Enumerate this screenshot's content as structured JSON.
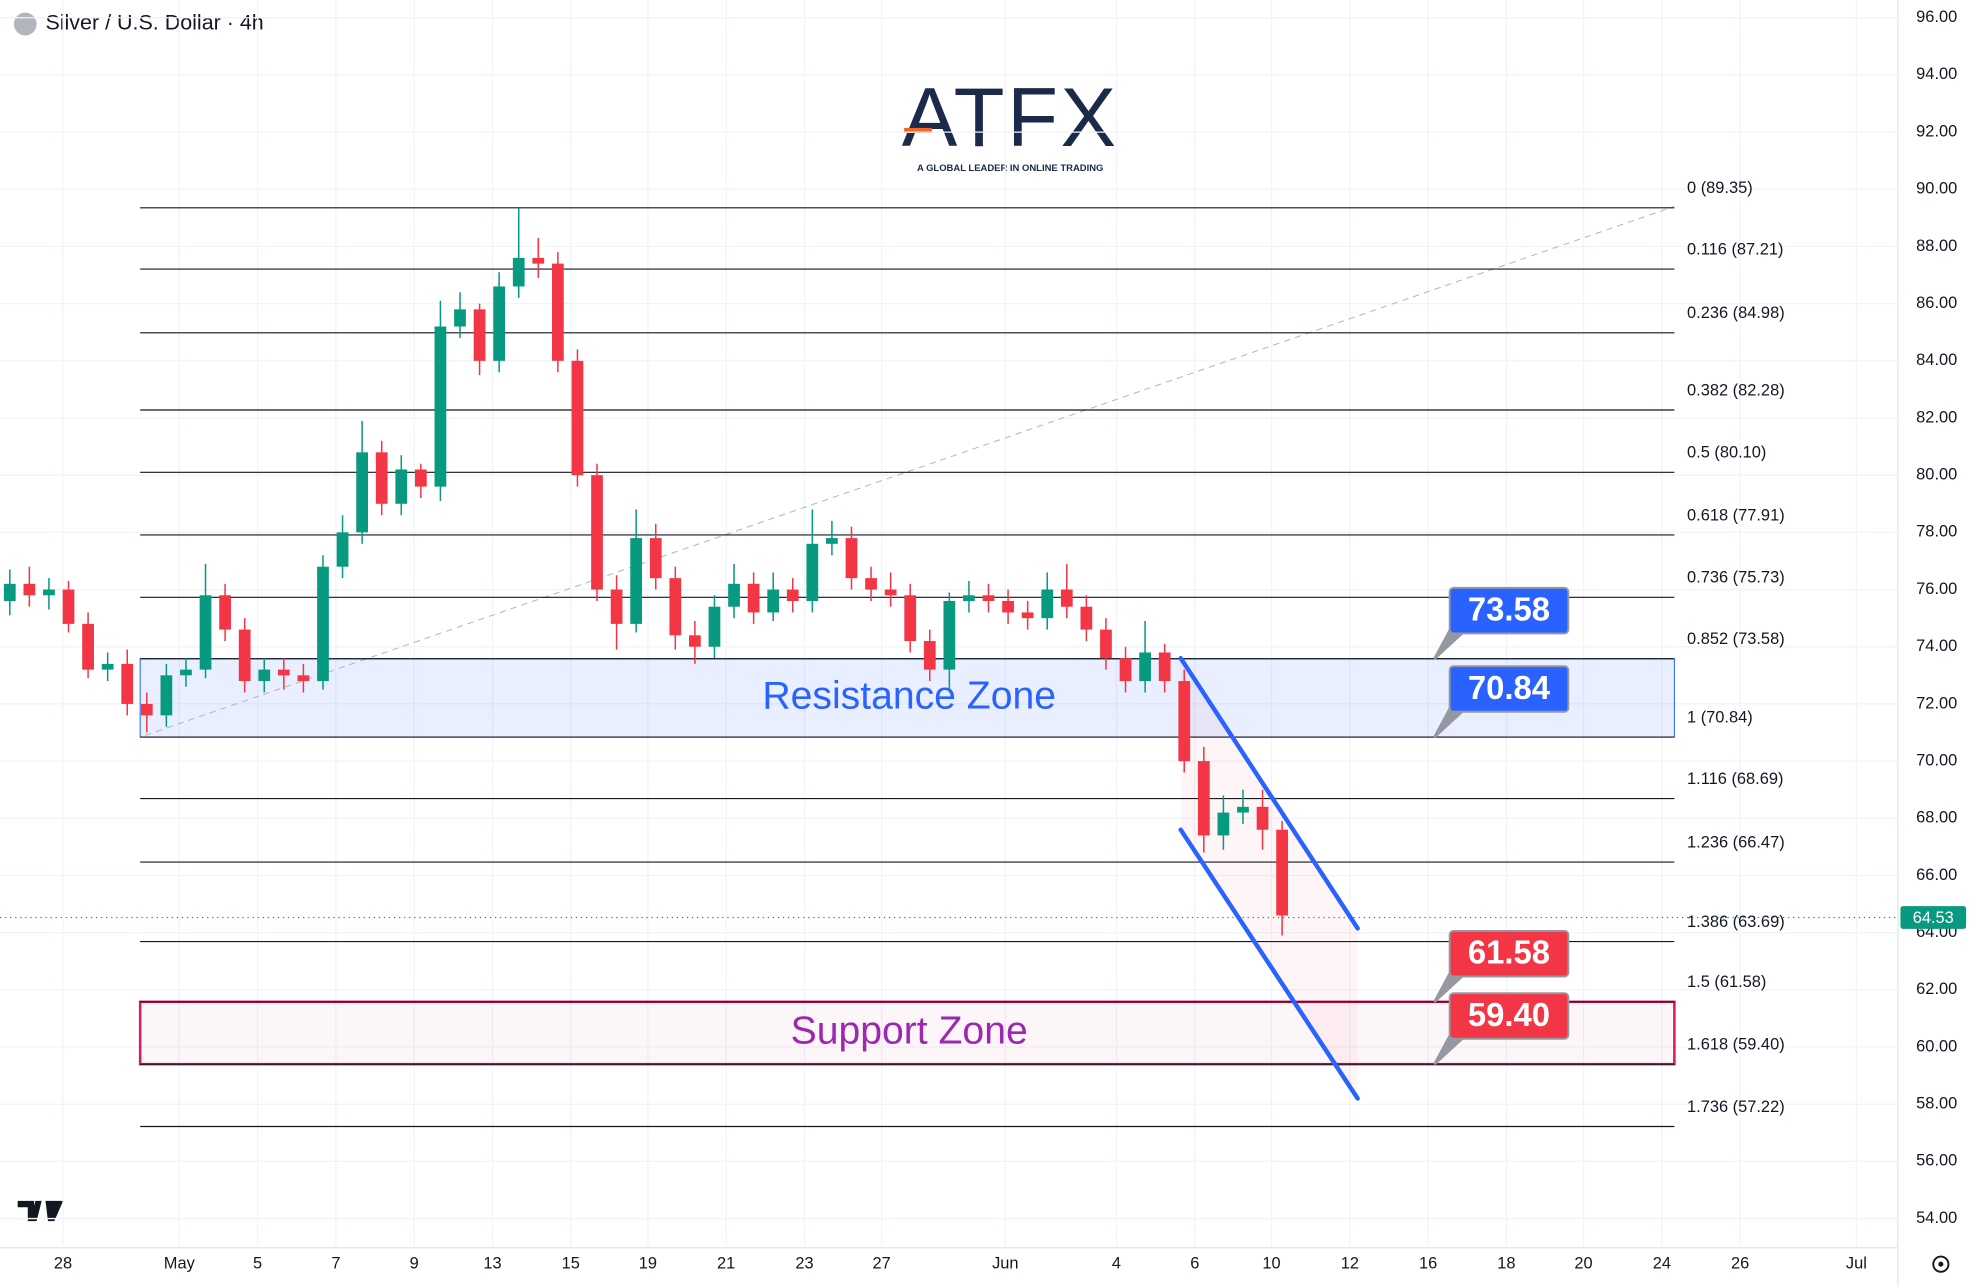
{
  "chart_data": {
    "type": "candlestick",
    "title": "Silver / U.S. Dollar · 4h",
    "brand": "ATFX",
    "brand_tagline": "A GLOBAL LEADER IN ONLINE TRADING",
    "x": [
      0.25,
      0.75,
      1.25,
      1.75,
      2.25,
      2.75,
      3.25,
      3.75,
      4.25,
      4.75,
      5.25,
      5.75,
      6.25,
      6.75,
      7.25,
      7.75,
      8.25,
      8.75,
      9.25,
      9.75,
      10.25,
      10.75,
      11.25,
      11.75,
      12.25,
      12.75,
      13.25,
      13.75,
      14.25,
      14.75,
      15.25,
      15.75,
      16.25,
      16.75,
      17.25,
      17.75,
      18.25,
      18.75,
      19.25,
      19.75,
      20.25,
      20.75,
      21.25,
      21.75,
      22.25,
      22.75,
      23.25,
      23.75,
      24.25,
      24.75,
      25.25,
      25.75,
      26.25,
      26.75,
      27.25,
      27.75,
      28.25,
      28.75,
      29.25,
      29.75,
      30.25,
      30.75,
      31.25,
      31.75,
      32.25,
      32.75
    ],
    "open": [
      75.6,
      76.2,
      75.8,
      76.0,
      74.8,
      73.2,
      73.4,
      72.0,
      71.6,
      73.0,
      73.2,
      75.8,
      74.6,
      72.8,
      73.2,
      73.0,
      72.8,
      76.8,
      78.0,
      80.8,
      79.0,
      80.2,
      79.6,
      85.2,
      85.8,
      84.0,
      86.6,
      87.6,
      87.4,
      84.0,
      80.0,
      76.0,
      74.8,
      77.8,
      76.4,
      74.4,
      74.0,
      75.4,
      76.2,
      75.2,
      76.0,
      75.6,
      77.6,
      77.8,
      76.4,
      76.0,
      75.8,
      74.2,
      73.2,
      75.6,
      75.8,
      75.6,
      75.2,
      75.0,
      76.0,
      75.4,
      74.6,
      73.6,
      72.8,
      73.8,
      72.8,
      70.0,
      67.4,
      68.2,
      68.4,
      67.6
    ],
    "high": [
      76.7,
      76.8,
      76.4,
      76.3,
      75.2,
      73.8,
      73.9,
      72.4,
      73.4,
      73.6,
      76.9,
      76.2,
      75.0,
      73.6,
      73.6,
      73.4,
      77.2,
      78.6,
      81.9,
      81.2,
      80.7,
      80.4,
      86.1,
      86.4,
      86.0,
      87.1,
      89.35,
      88.3,
      87.8,
      84.4,
      80.4,
      76.5,
      78.8,
      78.3,
      76.8,
      74.9,
      75.8,
      76.9,
      76.6,
      76.6,
      76.4,
      78.8,
      78.4,
      78.2,
      76.8,
      76.6,
      76.2,
      74.6,
      75.9,
      76.3,
      76.2,
      76.0,
      75.6,
      76.6,
      76.9,
      75.8,
      75.0,
      74.0,
      74.9,
      74.1,
      73.2,
      70.5,
      68.8,
      69.0,
      69.0,
      67.9
    ],
    "low": [
      75.1,
      75.4,
      75.3,
      74.5,
      72.9,
      72.8,
      71.6,
      71.0,
      71.2,
      72.6,
      72.9,
      74.2,
      72.4,
      72.4,
      72.5,
      72.4,
      72.5,
      76.4,
      77.6,
      78.6,
      78.6,
      79.2,
      79.1,
      84.8,
      83.5,
      83.6,
      86.2,
      86.9,
      83.6,
      79.6,
      75.6,
      73.9,
      74.5,
      76.0,
      73.9,
      73.4,
      73.6,
      75.0,
      74.8,
      74.9,
      75.2,
      75.2,
      77.2,
      76.0,
      75.6,
      75.4,
      73.8,
      72.8,
      72.4,
      75.2,
      75.2,
      74.8,
      74.6,
      74.6,
      75.0,
      74.2,
      73.2,
      72.4,
      72.4,
      72.4,
      69.6,
      66.8,
      66.9,
      67.8,
      66.9,
      63.9
    ],
    "close": [
      76.2,
      75.8,
      76.0,
      74.8,
      73.2,
      73.4,
      72.0,
      71.6,
      73.0,
      73.2,
      75.8,
      74.6,
      72.8,
      73.2,
      73.0,
      72.8,
      76.8,
      78.0,
      80.8,
      79.0,
      80.2,
      79.6,
      85.2,
      85.8,
      84.0,
      86.6,
      87.6,
      87.4,
      84.0,
      80.0,
      76.0,
      74.8,
      77.8,
      76.4,
      74.4,
      74.0,
      75.4,
      76.2,
      75.2,
      76.0,
      75.6,
      77.6,
      77.8,
      76.4,
      76.0,
      75.8,
      74.2,
      73.2,
      75.6,
      75.8,
      75.6,
      75.2,
      75.0,
      76.0,
      75.4,
      74.6,
      73.6,
      72.8,
      73.8,
      72.8,
      70.0,
      67.4,
      68.2,
      68.4,
      67.6,
      64.6
    ],
    "up_color": "#089981",
    "down_color": "#f23645",
    "xlim": [
      0,
      48.48
    ],
    "xticks": [
      {
        "value": 1.61,
        "label": "28"
      },
      {
        "value": 4.58,
        "label": "May"
      },
      {
        "value": 6.58,
        "label": "5"
      },
      {
        "value": 8.58,
        "label": "7"
      },
      {
        "value": 10.58,
        "label": "9"
      },
      {
        "value": 12.58,
        "label": "13"
      },
      {
        "value": 14.58,
        "label": "15"
      },
      {
        "value": 16.55,
        "label": "19"
      },
      {
        "value": 18.55,
        "label": "21"
      },
      {
        "value": 20.55,
        "label": "23"
      },
      {
        "value": 22.52,
        "label": "27"
      },
      {
        "value": 25.68,
        "label": "Jun"
      },
      {
        "value": 28.52,
        "label": "4"
      },
      {
        "value": 30.52,
        "label": "6"
      },
      {
        "value": 32.48,
        "label": "10"
      },
      {
        "value": 34.48,
        "label": "12"
      },
      {
        "value": 36.48,
        "label": "16"
      },
      {
        "value": 38.48,
        "label": "18"
      },
      {
        "value": 40.45,
        "label": "20"
      },
      {
        "value": 42.45,
        "label": "24"
      },
      {
        "value": 44.45,
        "label": "26"
      },
      {
        "value": 47.42,
        "label": "Jul"
      }
    ],
    "ylim": [
      52.98,
      96.62
    ],
    "yticks": [
      {
        "value": 54,
        "label": "54.00"
      },
      {
        "value": 56,
        "label": "56.00"
      },
      {
        "value": 58,
        "label": "58.00"
      },
      {
        "value": 60,
        "label": "60.00"
      },
      {
        "value": 62,
        "label": "62.00"
      },
      {
        "value": 64,
        "label": "64.00"
      },
      {
        "value": 66,
        "label": "66.00"
      },
      {
        "value": 68,
        "label": "68.00"
      },
      {
        "value": 70,
        "label": "70.00"
      },
      {
        "value": 72,
        "label": "72.00"
      },
      {
        "value": 74,
        "label": "74.00"
      },
      {
        "value": 76,
        "label": "76.00"
      },
      {
        "value": 78,
        "label": "78.00"
      },
      {
        "value": 80,
        "label": "80.00"
      },
      {
        "value": 82,
        "label": "82.00"
      },
      {
        "value": 84,
        "label": "84.00"
      },
      {
        "value": 86,
        "label": "86.00"
      },
      {
        "value": 88,
        "label": "88.00"
      },
      {
        "value": 90,
        "label": "90.00"
      },
      {
        "value": 92,
        "label": "92.00"
      },
      {
        "value": 94,
        "label": "94.00"
      },
      {
        "value": 96,
        "label": "96.00"
      }
    ],
    "fib_levels": [
      {
        "value": 89.35,
        "label": "0 (89.35)"
      },
      {
        "value": 87.21,
        "label": "0.116 (87.21)"
      },
      {
        "value": 84.98,
        "label": "0.236 (84.98)"
      },
      {
        "value": 82.28,
        "label": "0.382 (82.28)"
      },
      {
        "value": 80.1,
        "label": "0.5 (80.10)"
      },
      {
        "value": 77.91,
        "label": "0.618 (77.91)"
      },
      {
        "value": 75.73,
        "label": "0.736 (75.73)"
      },
      {
        "value": 73.58,
        "label": "0.852 (73.58)"
      },
      {
        "value": 70.84,
        "label": "1 (70.84)"
      },
      {
        "value": 68.69,
        "label": "1.116 (68.69)"
      },
      {
        "value": 66.47,
        "label": "1.236 (66.47)"
      },
      {
        "value": 63.69,
        "label": "1.386 (63.69)"
      },
      {
        "value": 61.58,
        "label": "1.5 (61.58)"
      },
      {
        "value": 59.4,
        "label": "1.618 (59.40)"
      },
      {
        "value": 57.22,
        "label": "1.736 (57.22)"
      }
    ],
    "fib_xlim": [
      3.58,
      42.77
    ],
    "zones": [
      {
        "name": "Resistance Zone",
        "ylim": [
          70.84,
          73.58
        ],
        "color": "#2962ff",
        "text_color": "#2962ff"
      },
      {
        "name": "Support Zone",
        "ylim": [
          59.4,
          61.58
        ],
        "color": "#d81b60",
        "text_color": "#9c27b0"
      }
    ],
    "price_tags": [
      {
        "value": 73.58,
        "label": "73.58",
        "color": "#2962ff"
      },
      {
        "value": 70.84,
        "label": "70.84",
        "color": "#2962ff"
      },
      {
        "value": 61.58,
        "label": "61.58",
        "color": "#f23645"
      },
      {
        "value": 59.4,
        "label": "59.40",
        "color": "#f23645"
      }
    ],
    "current_price": {
      "value": 64.53,
      "label": "64.53",
      "color": "#089981"
    },
    "channel_lines": [
      {
        "x": [
          30.16,
          34.68
        ],
        "y": [
          73.6,
          64.15
        ]
      },
      {
        "x": [
          30.16,
          34.68
        ],
        "y": [
          67.6,
          58.2
        ]
      }
    ],
    "trend_line": {
      "x": [
        3.71,
        42.77
      ],
      "y": [
        70.9,
        89.4
      ]
    }
  }
}
